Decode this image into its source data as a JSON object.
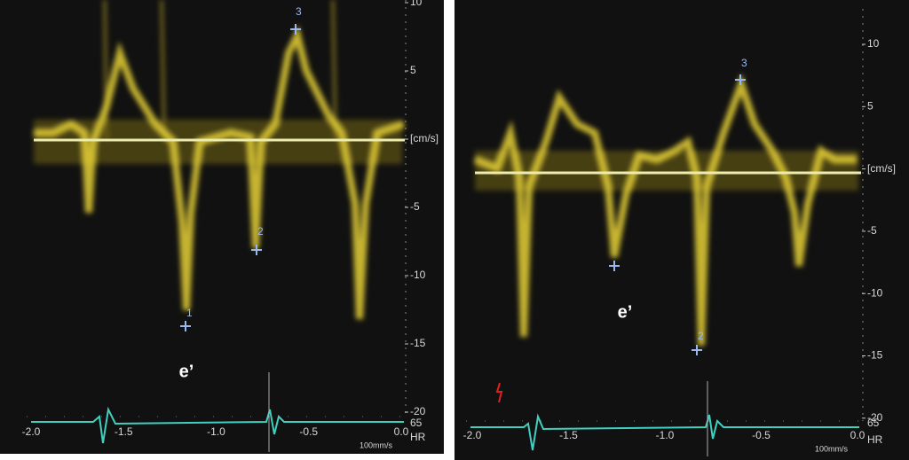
{
  "panels": [
    {
      "y_labels": [
        "10",
        "5",
        "[cm/s]",
        "-5",
        "-10",
        "-15",
        "-20"
      ],
      "x_labels": [
        "-2.0",
        "-1.5",
        "-1.0",
        "-0.5",
        "0.0"
      ],
      "hr_value": "65",
      "hr_label": "HR",
      "sweep": "100mm/s",
      "markers": [
        "1",
        "2",
        "3"
      ],
      "annotation": "e’"
    },
    {
      "y_labels": [
        "10",
        "5",
        "[cm/s]",
        "-5",
        "-10",
        "-15",
        "-20"
      ],
      "x_labels": [
        "-2.0",
        "-1.5",
        "-1.0",
        "-0.5",
        "0.0"
      ],
      "hr_value": "65",
      "hr_label": "HR",
      "sweep": "100mm/s",
      "markers": [
        "2",
        "3"
      ],
      "annotation": "e’"
    }
  ]
}
